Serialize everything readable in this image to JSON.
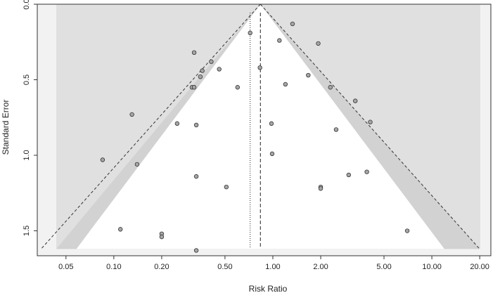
{
  "chart_data": {
    "type": "scatter",
    "xlabel": "Risk Ratio",
    "ylabel": "Standard Error",
    "x_scale": "log",
    "xlim": [
      0.033,
      23.5
    ],
    "ylim": [
      1.665,
      0.0
    ],
    "x_ticks": [
      {
        "value": 0.05,
        "label": "0.05"
      },
      {
        "value": 0.1,
        "label": "0.10"
      },
      {
        "value": 0.2,
        "label": "0.20"
      },
      {
        "value": 0.5,
        "label": "0.50"
      },
      {
        "value": 1.0,
        "label": "1.00"
      },
      {
        "value": 2.0,
        "label": "2.00"
      },
      {
        "value": 5.0,
        "label": "5.00"
      },
      {
        "value": 10.0,
        "label": "10.00"
      },
      {
        "value": 20.0,
        "label": "20.00"
      }
    ],
    "y_ticks": [
      {
        "value": 0.0,
        "label": "0.0"
      },
      {
        "value": 0.5,
        "label": "0.5"
      },
      {
        "value": 1.0,
        "label": "1.0"
      },
      {
        "value": 1.5,
        "label": "1.5"
      }
    ],
    "funnel": {
      "center_rr": 0.835,
      "max_se": 1.62,
      "z_bands": [
        1.645,
        1.96,
        2.576
      ],
      "band_colors": [
        "#ffffff",
        "#bdbdbd",
        "#d2d2d2",
        "#e0e0e0"
      ],
      "background_color": "#f2f2f2"
    },
    "reference_lines": [
      {
        "rr": 0.72,
        "style": "dotted"
      },
      {
        "rr": 0.835,
        "style": "dashed"
      }
    ],
    "points": [
      {
        "x": 0.72,
        "y": 0.19
      },
      {
        "x": 1.33,
        "y": 0.13
      },
      {
        "x": 1.1,
        "y": 0.24
      },
      {
        "x": 1.93,
        "y": 0.26
      },
      {
        "x": 0.32,
        "y": 0.32
      },
      {
        "x": 0.41,
        "y": 0.38
      },
      {
        "x": 0.36,
        "y": 0.44
      },
      {
        "x": 0.46,
        "y": 0.43
      },
      {
        "x": 0.83,
        "y": 0.42
      },
      {
        "x": 0.35,
        "y": 0.48
      },
      {
        "x": 1.67,
        "y": 0.47
      },
      {
        "x": 0.31,
        "y": 0.55
      },
      {
        "x": 0.32,
        "y": 0.55
      },
      {
        "x": 0.6,
        "y": 0.55
      },
      {
        "x": 1.2,
        "y": 0.53
      },
      {
        "x": 2.3,
        "y": 0.55
      },
      {
        "x": 3.3,
        "y": 0.64
      },
      {
        "x": 0.13,
        "y": 0.73
      },
      {
        "x": 0.25,
        "y": 0.79
      },
      {
        "x": 0.33,
        "y": 0.8
      },
      {
        "x": 0.98,
        "y": 0.79
      },
      {
        "x": 2.5,
        "y": 0.83
      },
      {
        "x": 4.1,
        "y": 0.78
      },
      {
        "x": 0.085,
        "y": 1.03
      },
      {
        "x": 0.14,
        "y": 1.06
      },
      {
        "x": 0.99,
        "y": 0.99
      },
      {
        "x": 0.33,
        "y": 1.14
      },
      {
        "x": 0.51,
        "y": 1.21
      },
      {
        "x": 2.0,
        "y": 1.21
      },
      {
        "x": 2.0,
        "y": 1.22
      },
      {
        "x": 3.0,
        "y": 1.13
      },
      {
        "x": 3.9,
        "y": 1.11
      },
      {
        "x": 0.11,
        "y": 1.49
      },
      {
        "x": 0.2,
        "y": 1.52
      },
      {
        "x": 0.2,
        "y": 1.54
      },
      {
        "x": 0.33,
        "y": 1.63
      },
      {
        "x": 7.0,
        "y": 1.5
      }
    ]
  }
}
